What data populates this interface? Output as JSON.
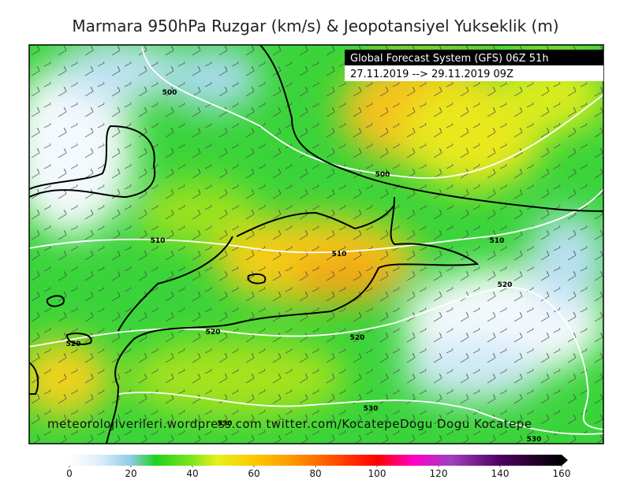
{
  "title": "Marmara 950hPa Ruzgar (km/s) & Jeopotansiyel Yukseklik (m)",
  "info": {
    "line1": "Global Forecast System (GFS) 06Z 51h",
    "line2": "27.11.2019 --> 29.11.2019 09Z"
  },
  "contour_labels": [
    500,
    500,
    510,
    510,
    510,
    520,
    520,
    520,
    520,
    530,
    530,
    530
  ],
  "credit": "meteorolojiverileri.wordpress.com  twitter.com/KocatepeDogu  Dogu Kocatepe",
  "colorbar": {
    "lim": [
      0,
      160
    ],
    "ticks": [
      0,
      20,
      40,
      60,
      80,
      100,
      120,
      140,
      160
    ],
    "stops": [
      {
        "value": 0,
        "color": "#ffffff"
      },
      {
        "value": 10,
        "color": "#dbeefa"
      },
      {
        "value": 20,
        "color": "#8ecbe8"
      },
      {
        "value": 28,
        "color": "#1ed21e"
      },
      {
        "value": 40,
        "color": "#80e61e"
      },
      {
        "value": 48,
        "color": "#e6f01e"
      },
      {
        "value": 60,
        "color": "#ffc800"
      },
      {
        "value": 72,
        "color": "#ff9a00"
      },
      {
        "value": 86,
        "color": "#ff5000"
      },
      {
        "value": 100,
        "color": "#ff0000"
      },
      {
        "value": 112,
        "color": "#ff00c8"
      },
      {
        "value": 124,
        "color": "#a040c0"
      },
      {
        "value": 140,
        "color": "#500060"
      },
      {
        "value": 160,
        "color": "#000000"
      }
    ]
  }
}
